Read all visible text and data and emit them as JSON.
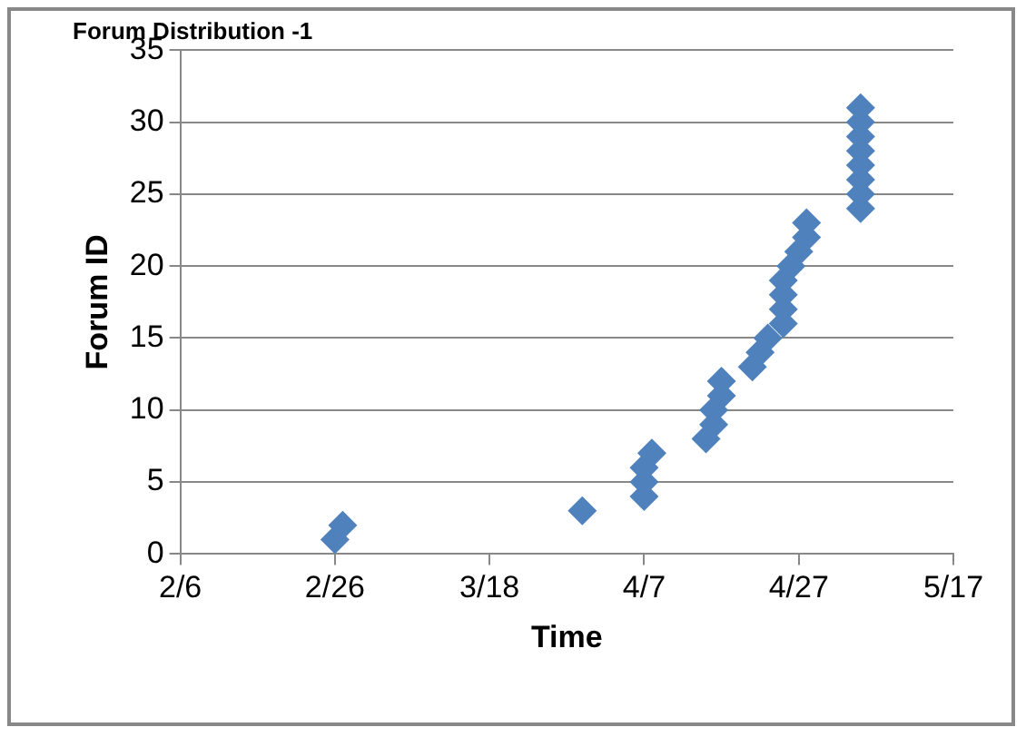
{
  "chart_data": {
    "type": "scatter",
    "title": "Forum Distribution -1",
    "xlabel": "Time",
    "ylabel": "Forum ID",
    "x": [
      "--02-26",
      "--02-27",
      "--03-30",
      "--04-07",
      "--04-07",
      "--04-07",
      "--04-08",
      "--04-15",
      "--04-16",
      "--04-16",
      "--04-17",
      "--04-17",
      "--04-21",
      "--04-22",
      "--04-23",
      "--04-25",
      "--04-25",
      "--04-25",
      "--04-25",
      "--04-26",
      "--04-27",
      "--04-28",
      "--04-28",
      "--05-05",
      "--05-05",
      "--05-05",
      "--05-05",
      "--05-05",
      "--05-05",
      "--05-05",
      "--05-05"
    ],
    "values": [
      1,
      2,
      3,
      4,
      5,
      6,
      7,
      8,
      9,
      10,
      11,
      12,
      13,
      14,
      15,
      16,
      17,
      18,
      19,
      20,
      21,
      22,
      23,
      24,
      25,
      26,
      27,
      28,
      29,
      30,
      31
    ],
    "color": "#4f81bd",
    "marker": "diamond",
    "grid": "y",
    "legend": false,
    "xlim": [
      "--02-06",
      "--05-17"
    ],
    "xticks": [
      {
        "value": "--02-06",
        "label": "2/6"
      },
      {
        "value": "--02-26",
        "label": "2/26"
      },
      {
        "value": "--03-18",
        "label": "3/18"
      },
      {
        "value": "--04-07",
        "label": "4/7"
      },
      {
        "value": "--04-27",
        "label": "4/27"
      },
      {
        "value": "--05-17",
        "label": "5/17"
      }
    ],
    "ylim": [
      0,
      35
    ],
    "yticks": [
      0,
      5,
      10,
      15,
      20,
      25,
      30,
      35
    ]
  }
}
